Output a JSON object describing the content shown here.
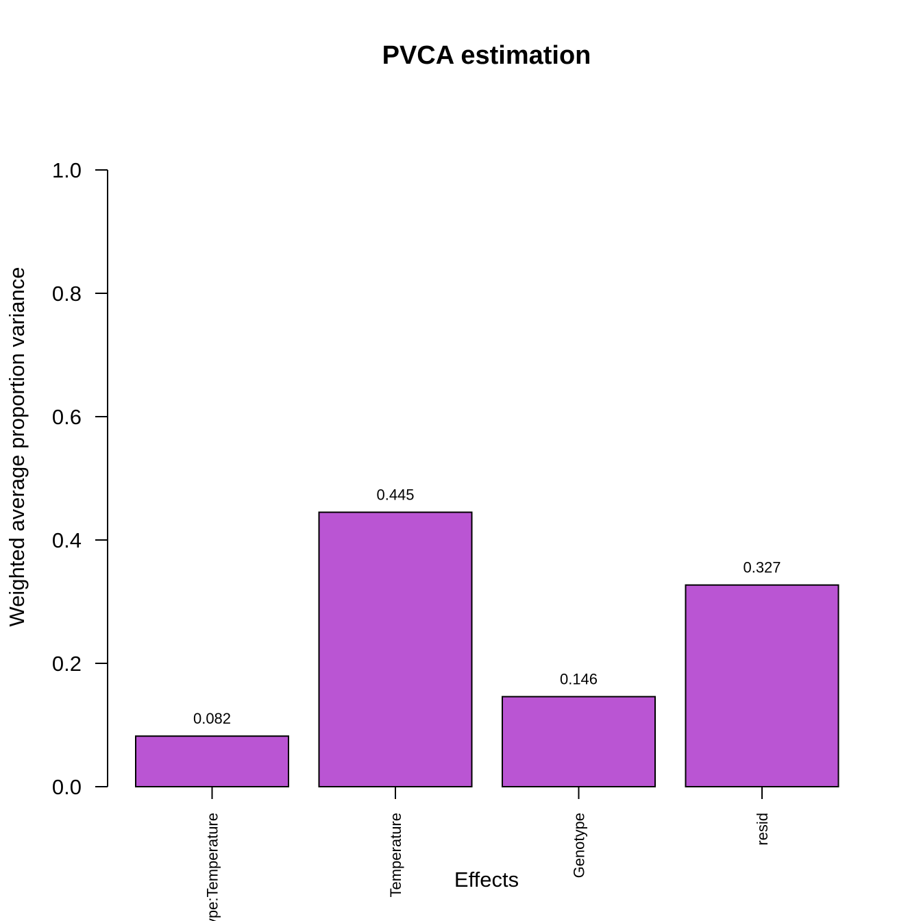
{
  "chart_data": {
    "type": "bar",
    "title": "PVCA estimation",
    "xlabel": "Effects",
    "ylabel": "Weighted average proportion variance",
    "categories": [
      "Genotype:Temperature",
      "Temperature",
      "Genotype",
      "resid"
    ],
    "values": [
      0.082,
      0.445,
      0.146,
      0.327
    ],
    "value_labels": [
      "0.082",
      "0.445",
      "0.146",
      "0.327"
    ],
    "ylim": [
      0,
      1
    ],
    "yticks": [
      0,
      0.2,
      0.4,
      0.6,
      0.8,
      1.0
    ],
    "ytick_labels": [
      "0.0",
      "0.2",
      "0.4",
      "0.6",
      "0.8",
      "1.0"
    ],
    "bar_color": "#BA55D3",
    "grid": false,
    "legend": "none"
  }
}
